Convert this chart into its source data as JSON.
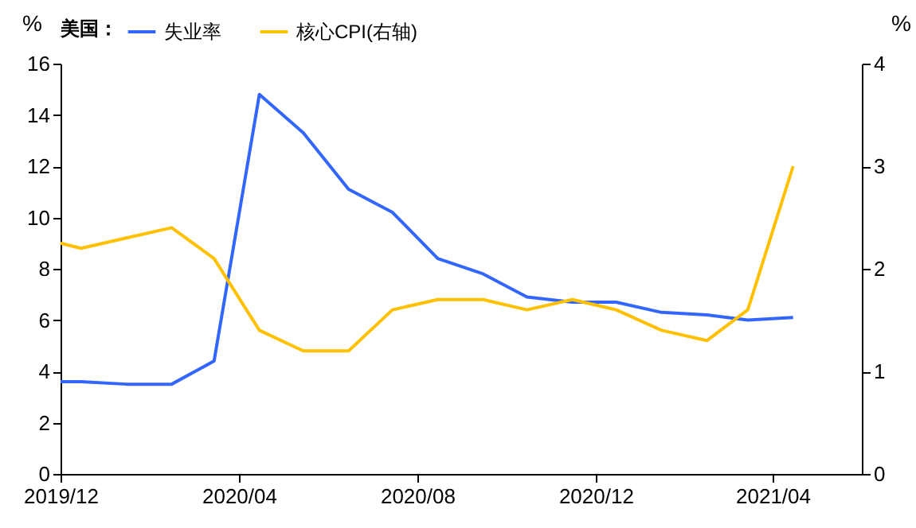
{
  "chart_data": {
    "type": "line",
    "legend_title": "美国：",
    "ylabel": "%",
    "y2label": "%",
    "x": [
      "2019-12-01",
      "2019-12-15",
      "2020-01-15",
      "2020-02-15",
      "2020-03-15",
      "2020-04-15",
      "2020-05-15",
      "2020-06-15",
      "2020-07-15",
      "2020-08-15",
      "2020-09-15",
      "2020-10-15",
      "2020-11-15",
      "2020-12-15",
      "2021-01-15",
      "2021-02-15",
      "2021-03-15",
      "2021-04-15"
    ],
    "series": [
      {
        "name": "失业率",
        "color": "#3366ff",
        "values": [
          3.6,
          3.6,
          3.5,
          3.5,
          4.4,
          14.8,
          13.3,
          11.1,
          10.2,
          8.4,
          7.8,
          6.9,
          6.7,
          6.7,
          6.3,
          6.2,
          6.0,
          6.1
        ]
      },
      {
        "name": "核心CPI(右轴)",
        "color": "#ffc000",
        "axis": "y2",
        "values": [
          2.25,
          2.2,
          2.3,
          2.4,
          2.1,
          1.4,
          1.2,
          1.2,
          1.6,
          1.7,
          1.7,
          1.6,
          1.7,
          1.6,
          1.4,
          1.3,
          1.6,
          3.0
        ]
      }
    ],
    "xlim": [
      "2019-12-01",
      "2021-06-01"
    ],
    "xticks": [
      {
        "value": "2019-12-01",
        "label": "2019/12"
      },
      {
        "value": "2020-04-01",
        "label": "2020/04"
      },
      {
        "value": "2020-08-01",
        "label": "2020/08"
      },
      {
        "value": "2020-12-01",
        "label": "2020/12"
      },
      {
        "value": "2021-04-01",
        "label": "2021/04"
      }
    ],
    "ylim": [
      0,
      16
    ],
    "yticks": [
      0,
      2,
      4,
      6,
      8,
      10,
      12,
      14,
      16
    ],
    "y2lim": [
      0,
      4
    ],
    "y2ticks": [
      0,
      1,
      2,
      3,
      4
    ],
    "grid": false,
    "legend": "top"
  }
}
